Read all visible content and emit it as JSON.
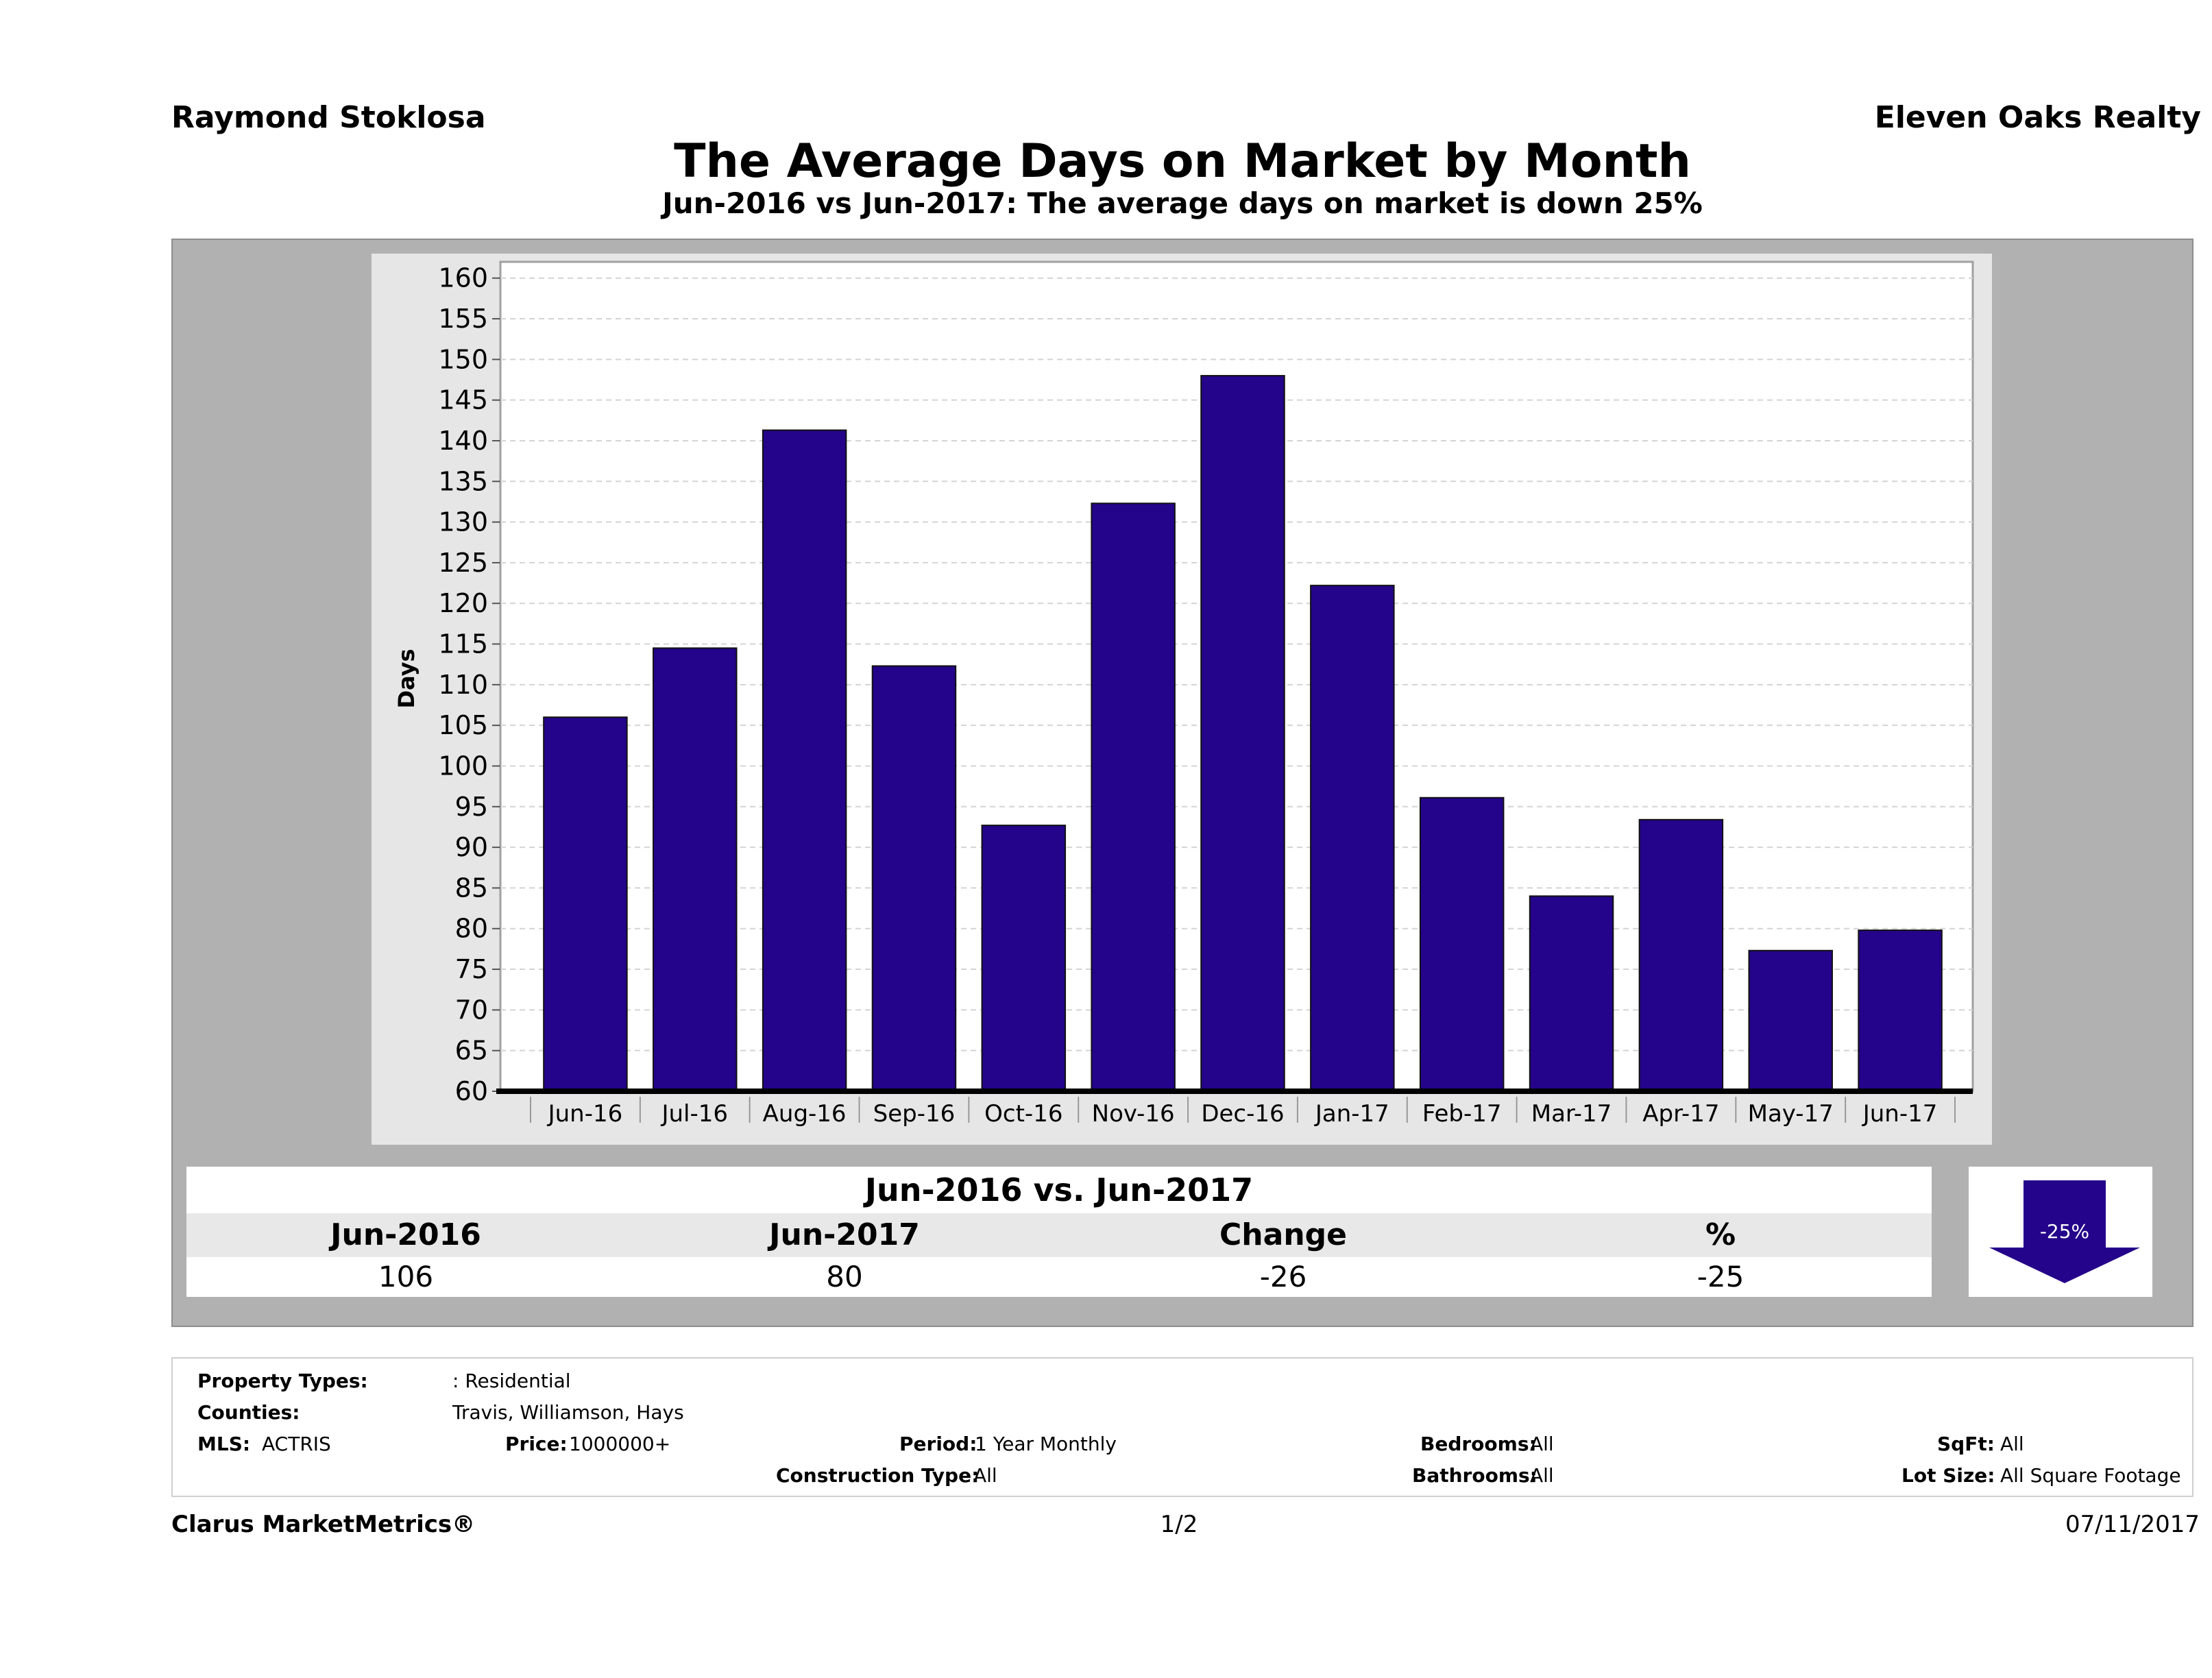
{
  "header": {
    "agent_name": "Raymond Stoklosa",
    "company_name": "Eleven Oaks Realty",
    "title": "The Average Days on Market by Month",
    "subtitle": "Jun-2016 vs Jun-2017: The average days on market is down 25%"
  },
  "chart_data": {
    "type": "bar",
    "categories": [
      "Jun-16",
      "Jul-16",
      "Aug-16",
      "Sep-16",
      "Oct-16",
      "Nov-16",
      "Dec-16",
      "Jan-17",
      "Feb-17",
      "Mar-17",
      "Apr-17",
      "May-17",
      "Jun-17"
    ],
    "values": [
      106,
      114.5,
      141.3,
      112.3,
      92.7,
      132.3,
      148,
      122.2,
      96.1,
      84,
      93.4,
      77.3,
      79.8
    ],
    "ylabel": "Days",
    "ylim": [
      60,
      162
    ],
    "yticks": [
      60,
      65,
      70,
      75,
      80,
      85,
      90,
      95,
      100,
      105,
      110,
      115,
      120,
      125,
      130,
      135,
      140,
      145,
      150,
      155,
      160
    ],
    "grid": true,
    "bar_color": "#24048a"
  },
  "summary": {
    "heading": "Jun-2016 vs. Jun-2017",
    "labels": [
      "Jun-2016",
      "Jun-2017",
      "Change",
      "%"
    ],
    "values": [
      "106",
      "80",
      "-26",
      "-25"
    ],
    "badge": "-25%",
    "badge_color": "#24048a"
  },
  "properties": {
    "property_types_label": "Property Types:",
    "property_types_value": ": Residential",
    "counties_label": "Counties:",
    "counties_value": "Travis, Williamson, Hays",
    "mls_label": "MLS:",
    "mls_value": "ACTRIS",
    "price_label": "Price:",
    "price_value": "1000000+",
    "period_label": "Period:",
    "period_value": "1 Year Monthly",
    "construction_label": "Construction Type:",
    "construction_value": "All",
    "bedrooms_label": "Bedrooms:",
    "bedrooms_value": "All",
    "bathrooms_label": "Bathrooms:",
    "bathrooms_value": "All",
    "sqft_label": "SqFt:",
    "sqft_value": "All",
    "lotsize_label": "Lot Size:",
    "lotsize_value": "All Square Footage"
  },
  "footer": {
    "brand": "Clarus MarketMetrics®",
    "page": "1/2",
    "date": "07/11/2017"
  }
}
